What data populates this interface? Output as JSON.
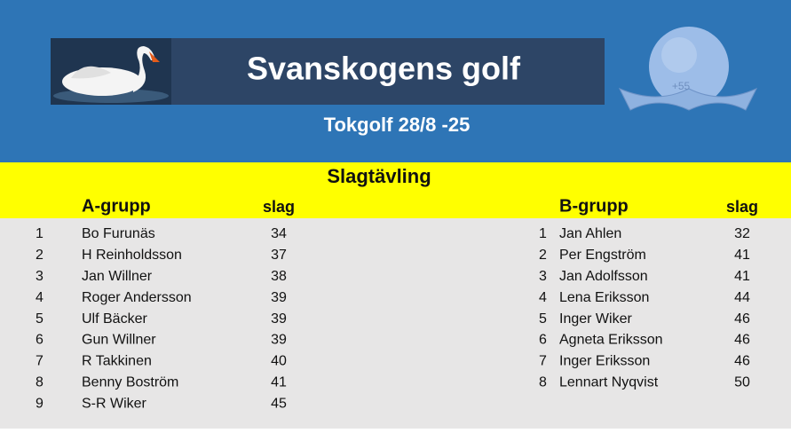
{
  "header": {
    "title": "Svanskogens golf",
    "subtitle": "Tokgolf 28/8 -25",
    "badge": "+55"
  },
  "section": {
    "title": "Slagtävling"
  },
  "groups": [
    {
      "name": "A-grupp",
      "score_header": "slag",
      "rows": [
        [
          1,
          "Bo Furunäs",
          34
        ],
        [
          2,
          "H Reinholdsson",
          37
        ],
        [
          3,
          "Jan Willner",
          38
        ],
        [
          4,
          "Roger Andersson",
          39
        ],
        [
          5,
          "Ulf Bäcker",
          39
        ],
        [
          6,
          "Gun Willner",
          39
        ],
        [
          7,
          "R Takkinen",
          40
        ],
        [
          8,
          "Benny Boström",
          41
        ],
        [
          9,
          "S-R Wiker",
          45
        ]
      ]
    },
    {
      "name": "B-grupp",
      "score_header": "slag",
      "rows": [
        [
          1,
          "Jan Ahlen",
          32
        ],
        [
          2,
          "Per Engström",
          41
        ],
        [
          3,
          "Jan Adolfsson",
          41
        ],
        [
          4,
          "Lena Eriksson",
          44
        ],
        [
          5,
          "Inger Wiker",
          46
        ],
        [
          6,
          "Agneta Eriksson",
          46
        ],
        [
          7,
          "Inger Eriksson",
          46
        ],
        [
          8,
          "Lennart Nyqvist",
          50
        ]
      ]
    }
  ]
}
